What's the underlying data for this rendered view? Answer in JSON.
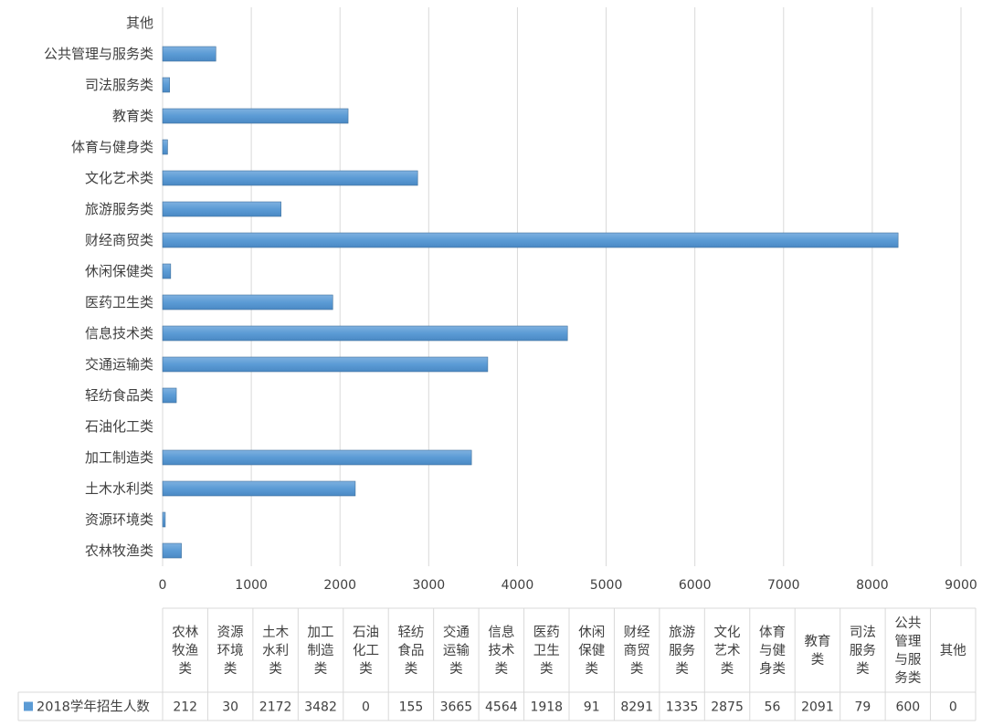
{
  "chart_data": {
    "type": "bar",
    "orientation": "horizontal",
    "categories": [
      "农林牧渔类",
      "资源环境类",
      "土木水利类",
      "加工制造类",
      "石油化工类",
      "轻纺食品类",
      "交通运输类",
      "信息技术类",
      "医药卫生类",
      "休闲保健类",
      "财经商贸类",
      "旅游服务类",
      "文化艺术类",
      "体育与健身类",
      "教育类",
      "司法服务类",
      "公共管理与服务类",
      "其他"
    ],
    "table_headers": [
      [
        "农林",
        "牧渔",
        "类"
      ],
      [
        "资源",
        "环境",
        "类"
      ],
      [
        "土木",
        "水利",
        "类"
      ],
      [
        "加工",
        "制造",
        "类"
      ],
      [
        "石油",
        "化工",
        "类"
      ],
      [
        "轻纺",
        "食品",
        "类"
      ],
      [
        "交通",
        "运输",
        "类"
      ],
      [
        "信息",
        "技术",
        "类"
      ],
      [
        "医药",
        "卫生",
        "类"
      ],
      [
        "休闲",
        "保健",
        "类"
      ],
      [
        "财经",
        "商贸",
        "类"
      ],
      [
        "旅游",
        "服务",
        "类"
      ],
      [
        "文化",
        "艺术",
        "类"
      ],
      [
        "体育",
        "与健",
        "身类"
      ],
      [
        "教育",
        "类"
      ],
      [
        "司法",
        "服务",
        "类"
      ],
      [
        "公共",
        "管理",
        "与服",
        "务类"
      ],
      [
        "其他"
      ]
    ],
    "series": [
      {
        "name": "2018学年招生人数",
        "values": [
          212,
          30,
          2172,
          3482,
          0,
          155,
          3665,
          4564,
          1918,
          91,
          8291,
          1335,
          2875,
          56,
          2091,
          79,
          600,
          0
        ]
      }
    ],
    "value_labels": [
      "212",
      "30",
      "2172",
      "3482",
      "0",
      "155",
      "3665",
      "4564",
      "1918",
      "91",
      "8291",
      "1335",
      "2875",
      "56",
      "2091",
      "79",
      "600",
      "0"
    ],
    "xlim": [
      0,
      9000
    ],
    "xticks": [
      0,
      1000,
      2000,
      3000,
      4000,
      5000,
      6000,
      7000,
      8000,
      9000
    ],
    "xtick_labels": [
      "0",
      "1000",
      "2000",
      "3000",
      "4000",
      "5000",
      "6000",
      "7000",
      "8000",
      "9000"
    ],
    "grid": true,
    "legend_placement": "data-table-row",
    "colors": {
      "bar": "#5B9BD5",
      "bar_edge": "#41719C",
      "grid": "#D9D9D9",
      "text": "#404040"
    }
  }
}
